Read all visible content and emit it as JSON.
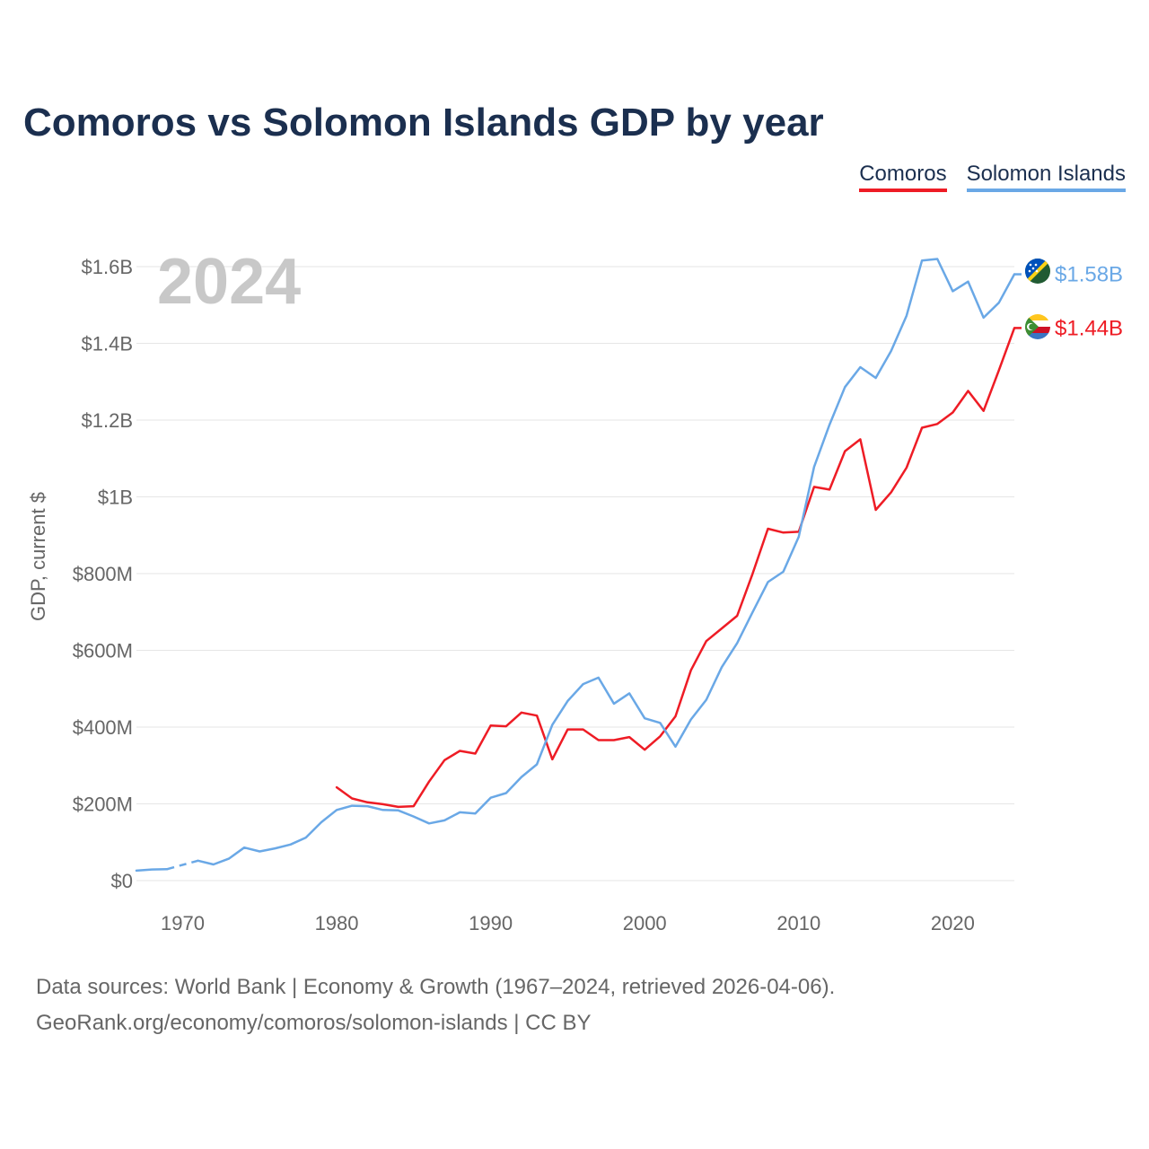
{
  "title": "Comoros vs Solomon Islands GDP by year",
  "legend": {
    "comoros": "Comoros",
    "solomon": "Solomon Islands"
  },
  "colors": {
    "comoros": "#ee1c25",
    "solomon": "#6aa8e6",
    "title": "#1b2f4f",
    "grid": "#e6e6e6",
    "axis_text": "#666666",
    "year_watermark": "#c8c8c8"
  },
  "footer": {
    "line1": "Data sources: World Bank | Economy & Growth (1967–2024, retrieved 2026-04-06).",
    "line2": "GeoRank.org/economy/comoros/solomon-islands | CC BY"
  },
  "chart_data": {
    "type": "line",
    "title": "Comoros vs Solomon Islands GDP by year",
    "xlabel": "",
    "ylabel": "GDP, current $",
    "current_year": "2024",
    "xlim": [
      1967,
      2024
    ],
    "ylim": [
      0,
      1600
    ],
    "value_unit": "millions of current US$",
    "x_ticks": [
      {
        "value": 1970,
        "label": "1970"
      },
      {
        "value": 1980,
        "label": "1980"
      },
      {
        "value": 1990,
        "label": "1990"
      },
      {
        "value": 2000,
        "label": "2000"
      },
      {
        "value": 2010,
        "label": "2010"
      },
      {
        "value": 2020,
        "label": "2020"
      }
    ],
    "y_ticks": [
      {
        "value": 0,
        "label": "$0"
      },
      {
        "value": 200,
        "label": "$200M"
      },
      {
        "value": 400,
        "label": "$400M"
      },
      {
        "value": 600,
        "label": "$600M"
      },
      {
        "value": 800,
        "label": "$800M"
      },
      {
        "value": 1000,
        "label": "$1B"
      },
      {
        "value": 1200,
        "label": "$1.2B"
      },
      {
        "value": 1400,
        "label": "$1.4B"
      },
      {
        "value": 1600,
        "label": "$1.6B"
      }
    ],
    "grid": true,
    "series": [
      {
        "name": "Comoros",
        "color": "#ee1c25",
        "end_label": "$1.44B",
        "points": [
          [
            1980,
            243
          ],
          [
            1981,
            214
          ],
          [
            1982,
            204
          ],
          [
            1983,
            199
          ],
          [
            1984,
            192
          ],
          [
            1985,
            194
          ],
          [
            1986,
            258
          ],
          [
            1987,
            314
          ],
          [
            1988,
            338
          ],
          [
            1989,
            331
          ],
          [
            1990,
            404
          ],
          [
            1991,
            402
          ],
          [
            1992,
            438
          ],
          [
            1993,
            430
          ],
          [
            1994,
            316
          ],
          [
            1995,
            394
          ],
          [
            1996,
            394
          ],
          [
            1997,
            366
          ],
          [
            1998,
            366
          ],
          [
            1999,
            374
          ],
          [
            2000,
            341
          ],
          [
            2001,
            376
          ],
          [
            2002,
            428
          ],
          [
            2003,
            548
          ],
          [
            2004,
            624
          ],
          [
            2005,
            657
          ],
          [
            2006,
            690
          ],
          [
            2007,
            799
          ],
          [
            2008,
            917
          ],
          [
            2009,
            907
          ],
          [
            2010,
            909
          ],
          [
            2011,
            1026
          ],
          [
            2012,
            1019
          ],
          [
            2013,
            1119
          ],
          [
            2014,
            1150
          ],
          [
            2015,
            966
          ],
          [
            2016,
            1012
          ],
          [
            2017,
            1076
          ],
          [
            2018,
            1180
          ],
          [
            2019,
            1190
          ],
          [
            2020,
            1220
          ],
          [
            2021,
            1276
          ],
          [
            2022,
            1224
          ],
          [
            2023,
            1330
          ],
          [
            2024,
            1440
          ]
        ]
      },
      {
        "name": "Solomon Islands",
        "color": "#6aa8e6",
        "end_label": "$1.58B",
        "points": [
          [
            1967,
            26
          ],
          [
            1968,
            29
          ],
          [
            1969,
            30
          ],
          [
            1970,
            null
          ],
          [
            1971,
            52
          ],
          [
            1972,
            42
          ],
          [
            1973,
            57
          ],
          [
            1974,
            86
          ],
          [
            1975,
            76
          ],
          [
            1976,
            84
          ],
          [
            1977,
            94
          ],
          [
            1978,
            112
          ],
          [
            1979,
            152
          ],
          [
            1980,
            184
          ],
          [
            1981,
            195
          ],
          [
            1982,
            194
          ],
          [
            1983,
            184
          ],
          [
            1984,
            183
          ],
          [
            1985,
            167
          ],
          [
            1986,
            149
          ],
          [
            1987,
            157
          ],
          [
            1988,
            178
          ],
          [
            1989,
            175
          ],
          [
            1990,
            216
          ],
          [
            1991,
            228
          ],
          [
            1992,
            270
          ],
          [
            1993,
            303
          ],
          [
            1994,
            406
          ],
          [
            1995,
            468
          ],
          [
            1996,
            512
          ],
          [
            1997,
            529
          ],
          [
            1998,
            461
          ],
          [
            1999,
            488
          ],
          [
            2000,
            423
          ],
          [
            2001,
            411
          ],
          [
            2002,
            349
          ],
          [
            2003,
            420
          ],
          [
            2004,
            471
          ],
          [
            2005,
            556
          ],
          [
            2006,
            619
          ],
          [
            2007,
            699
          ],
          [
            2008,
            778
          ],
          [
            2009,
            805
          ],
          [
            2010,
            896
          ],
          [
            2011,
            1078
          ],
          [
            2012,
            1188
          ],
          [
            2013,
            1286
          ],
          [
            2014,
            1338
          ],
          [
            2015,
            1310
          ],
          [
            2016,
            1380
          ],
          [
            2017,
            1472
          ],
          [
            2018,
            1616
          ],
          [
            2019,
            1620
          ],
          [
            2020,
            1536
          ],
          [
            2021,
            1561
          ],
          [
            2022,
            1467
          ],
          [
            2023,
            1506
          ],
          [
            2024,
            1580
          ]
        ],
        "gap": {
          "from": [
            1969,
            30
          ],
          "to": [
            1971,
            52
          ]
        }
      }
    ]
  }
}
